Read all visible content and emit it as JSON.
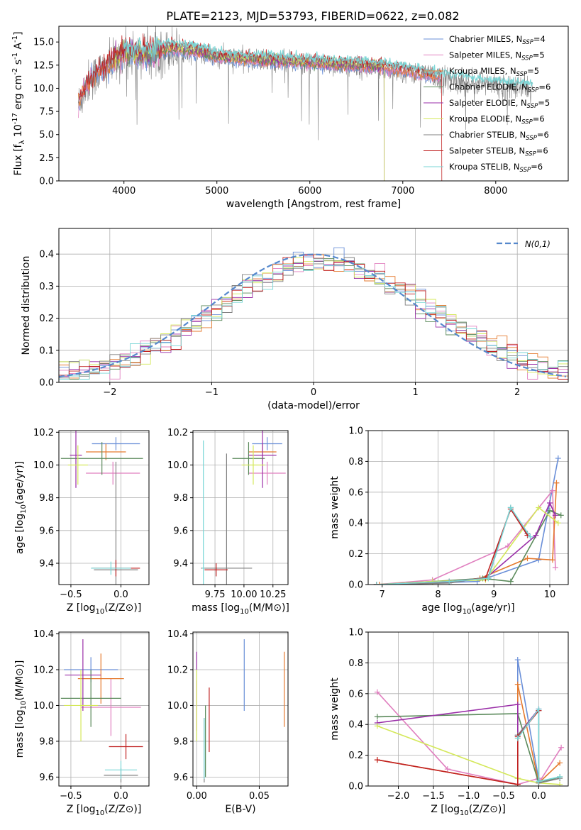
{
  "colors": [
    "#6a8fd8",
    "#e07fbf",
    "#e57a2e",
    "#5b8a5b",
    "#9a2fa8",
    "#d4e85a",
    "#808080",
    "#c02020",
    "#78d6d6"
  ],
  "legend_entries": [
    "Chabrier MILES, N_SSP=4",
    "Salpeter MILES, N_SSP=5",
    "Kroupa MILES, N_SSP=5",
    "Chabrier ELODIE, N_SSP=6",
    "Salpeter ELODIE, N_SSP=5",
    "Kroupa ELODIE, N_SSP=6",
    "Chabrier STELIB, N_SSP=6",
    "Salpeter STELIB, N_SSP=6",
    "Kroupa STELIB, N_SSP=6"
  ],
  "chart_data": [
    {
      "type": "line",
      "id": "spectrum",
      "title": "PLATE=2123, MJD=53793, FIBERID=0622, z=0.082",
      "xlabel": "wavelength [Angstrom, rest frame]",
      "ylabel": "Flux [f_λ 10^-17 erg cm^-2 s^-1 A^-1]",
      "xlim": [
        3300,
        8780
      ],
      "ylim": [
        0,
        16.7
      ],
      "xticks": [
        4000,
        5000,
        6000,
        7000,
        8000
      ],
      "yticks": [
        0.0,
        2.5,
        5.0,
        7.5,
        10.0,
        12.5,
        15.0
      ],
      "ytick_labels": [
        "0.0",
        "2.5",
        "5.0",
        "7.5",
        "10.0",
        "12.5",
        "15.0"
      ],
      "legend": "top-right",
      "observed_continuum": [
        [
          3510,
          8.2
        ],
        [
          3600,
          10.5
        ],
        [
          3700,
          11.5
        ],
        [
          3800,
          12.0
        ],
        [
          3900,
          12.8
        ],
        [
          4000,
          13.8
        ],
        [
          4100,
          13.6
        ],
        [
          4300,
          13.5
        ],
        [
          4500,
          14.2
        ],
        [
          4800,
          13.8
        ],
        [
          5000,
          13.2
        ],
        [
          5500,
          12.9
        ],
        [
          6000,
          12.6
        ],
        [
          6500,
          12.3
        ],
        [
          6800,
          12.1
        ],
        [
          7000,
          11.8
        ],
        [
          7300,
          11.2
        ],
        [
          7600,
          10.8
        ],
        [
          8000,
          10.3
        ],
        [
          8400,
          9.9
        ]
      ],
      "model_ranges": [
        [
          3510,
          7400
        ],
        [
          3510,
          7400
        ],
        [
          3510,
          7400
        ],
        [
          3900,
          6800
        ],
        [
          3900,
          6800
        ],
        [
          3900,
          6800
        ],
        [
          3510,
          7420
        ],
        [
          3510,
          7420
        ],
        [
          4000,
          8400
        ]
      ]
    },
    {
      "type": "bar",
      "id": "residuals",
      "xlabel": "(data-model)/error",
      "ylabel": "Normed distribution",
      "xlim": [
        -2.5,
        2.5
      ],
      "ylim": [
        0,
        0.48
      ],
      "xticks": [
        -2,
        -1,
        0,
        1,
        2
      ],
      "xtick_labels": [
        "−2",
        "−1",
        "0",
        "1",
        "2"
      ],
      "yticks": [
        0.0,
        0.1,
        0.2,
        0.3,
        0.4
      ],
      "ytick_labels": [
        "0.0",
        "0.1",
        "0.2",
        "0.3",
        "0.4"
      ],
      "bin_width": 0.1,
      "gaussian_label": "N(0,1)",
      "legend": "top-right"
    },
    {
      "type": "scatter",
      "id": "age-vs-Z",
      "xlabel": "Z [log10(Z/Z⊙)]",
      "ylabel": "age [log10(age/yr)]",
      "xlim": [
        -0.62,
        0.28
      ],
      "ylim": [
        9.27,
        10.21
      ],
      "xticks": [
        -0.5,
        0.0
      ],
      "xtick_labels": [
        "−0.5",
        "0.0"
      ],
      "yticks": [
        9.4,
        9.6,
        9.8,
        10.0,
        10.2
      ],
      "ytick_labels": [
        "9.4",
        "9.6",
        "9.8",
        "10.0",
        "10.2"
      ],
      "points": [
        {
          "x": -0.05,
          "y": 10.13,
          "xerr": 0.24,
          "yerr": 0.04
        },
        {
          "x": -0.08,
          "y": 9.95,
          "xerr": 0.27,
          "yerr": 0.07
        },
        {
          "x": -0.15,
          "y": 10.08,
          "xerr": 0.2,
          "yerr": 0.05
        },
        {
          "x": -0.19,
          "y": 10.04,
          "xerr": 0.41,
          "yerr": 0.1
        },
        {
          "x": -0.45,
          "y": 10.06,
          "xerr": 0.06,
          "yerr": 0.2
        },
        {
          "x": -0.43,
          "y": 10.0,
          "xerr": 0.1,
          "yerr": 0.12
        },
        {
          "x": -0.05,
          "y": 9.36,
          "xerr": 0.22,
          "yerr": 0.66
        },
        {
          "x": -0.05,
          "y": 9.37,
          "xerr": 0.24,
          "yerr": 0.05
        },
        {
          "x": -0.1,
          "y": 9.37,
          "xerr": 0.2,
          "yerr": 0.04
        }
      ]
    },
    {
      "type": "scatter",
      "id": "age-vs-mass",
      "xlabel": "mass [log10(M/M⊙)]",
      "ylabel": "",
      "xlim": [
        9.56,
        10.38
      ],
      "ylim": [
        9.27,
        10.21
      ],
      "xticks": [
        9.75,
        10.0,
        10.25
      ],
      "xtick_labels": [
        "9.75",
        "10.00",
        "10.25"
      ],
      "yticks": [
        9.4,
        9.6,
        9.8,
        10.0,
        10.2
      ],
      "ytick_labels": [
        "9.4",
        "9.6",
        "9.8",
        "10.0",
        "10.2"
      ],
      "points": [
        {
          "x": 10.2,
          "y": 10.13,
          "xerr": 0.13,
          "yerr": 0.04
        },
        {
          "x": 10.2,
          "y": 9.95,
          "xerr": 0.16,
          "yerr": 0.07
        },
        {
          "x": 10.16,
          "y": 10.08,
          "xerr": 0.12,
          "yerr": 0.05
        },
        {
          "x": 10.04,
          "y": 10.04,
          "xerr": 0.14,
          "yerr": 0.1
        },
        {
          "x": 10.16,
          "y": 10.06,
          "xerr": 0.12,
          "yerr": 0.2
        },
        {
          "x": 10.08,
          "y": 10.0,
          "xerr": 0.1,
          "yerr": 0.12
        },
        {
          "x": 9.85,
          "y": 9.37,
          "xerr": 0.22,
          "yerr": 0.7
        },
        {
          "x": 9.76,
          "y": 9.36,
          "xerr": 0.1,
          "yerr": 0.04
        },
        {
          "x": 9.65,
          "y": 9.37,
          "xerr": 0.01,
          "yerr": 0.78
        }
      ]
    },
    {
      "type": "line",
      "id": "massweight-vs-age",
      "xlabel": "age [log10(age/yr)]",
      "ylabel": "mass weight",
      "xlim": [
        6.75,
        10.33
      ],
      "ylim": [
        0,
        1.0
      ],
      "xticks": [
        7,
        8,
        9,
        10
      ],
      "xtick_labels": [
        "7",
        "8",
        "9",
        "10"
      ],
      "yticks": [
        0.0,
        0.2,
        0.4,
        0.6,
        0.8,
        1.0
      ],
      "ytick_labels": [
        "0.0",
        "0.2",
        "0.4",
        "0.6",
        "0.8",
        "1.0"
      ],
      "series": [
        {
          "x": [
            6.9,
            7.9,
            8.7,
            9.8,
            10.15
          ],
          "y": [
            0.0,
            0.01,
            0.02,
            0.16,
            0.82
          ]
        },
        {
          "x": [
            6.9,
            7.9,
            9.25,
            10.05,
            10.1
          ],
          "y": [
            0.0,
            0.03,
            0.25,
            0.61,
            0.11
          ]
        },
        {
          "x": [
            6.95,
            7.9,
            8.75,
            9.6,
            10.05,
            10.12
          ],
          "y": [
            0.0,
            0.01,
            0.04,
            0.17,
            0.16,
            0.66
          ]
        },
        {
          "x": [
            6.9,
            7.9,
            8.8,
            9.3,
            10.0,
            10.2
          ],
          "y": [
            0.0,
            0.02,
            0.04,
            0.02,
            0.48,
            0.45
          ]
        },
        {
          "x": [
            6.9,
            7.9,
            8.85,
            9.75,
            10.0,
            10.1
          ],
          "y": [
            0.0,
            0.01,
            0.04,
            0.32,
            0.53,
            0.45
          ]
        },
        {
          "x": [
            6.9,
            7.9,
            8.85,
            9.8,
            10.15
          ],
          "y": [
            0.0,
            0.02,
            0.03,
            0.5,
            0.4
          ]
        },
        {
          "x": [
            6.9,
            8.2,
            8.9,
            9.3,
            9.6
          ],
          "y": [
            0.0,
            0.01,
            0.05,
            0.5,
            0.33
          ]
        },
        {
          "x": [
            6.9,
            8.2,
            8.85,
            9.3,
            9.6
          ],
          "y": [
            0.0,
            0.02,
            0.04,
            0.49,
            0.32
          ]
        },
        {
          "x": [
            6.9,
            8.2,
            8.9,
            9.3,
            9.65
          ],
          "y": [
            0.0,
            0.02,
            0.04,
            0.5,
            0.31
          ]
        }
      ]
    },
    {
      "type": "scatter",
      "id": "mass-vs-Z",
      "xlabel": "Z [log10(Z/Z⊙)]",
      "ylabel": "mass [log10(M/M⊙)]",
      "xlim": [
        -0.62,
        0.28
      ],
      "ylim": [
        9.55,
        10.41
      ],
      "xticks": [
        -0.5,
        0.0
      ],
      "xtick_labels": [
        "−0.5",
        "0.0"
      ],
      "yticks": [
        9.6,
        9.8,
        10.0,
        10.2,
        10.4
      ],
      "ytick_labels": [
        "9.6",
        "9.8",
        "10.0",
        "10.2",
        "10.4"
      ],
      "points": [
        {
          "x": -0.3,
          "y": 10.2,
          "xerr": 0.27,
          "yerr": 0.07
        },
        {
          "x": -0.1,
          "y": 9.99,
          "xerr": 0.3,
          "yerr": 0.16
        },
        {
          "x": -0.2,
          "y": 10.15,
          "xerr": 0.23,
          "yerr": 0.14
        },
        {
          "x": -0.3,
          "y": 10.04,
          "xerr": 0.3,
          "yerr": 0.16
        },
        {
          "x": -0.38,
          "y": 10.17,
          "xerr": 0.18,
          "yerr": 0.2
        },
        {
          "x": -0.4,
          "y": 10.0,
          "xerr": 0.17,
          "yerr": 0.2
        },
        {
          "x": 0.0,
          "y": 9.61,
          "xerr": 0.17,
          "yerr": 0.04
        },
        {
          "x": 0.05,
          "y": 9.77,
          "xerr": 0.17,
          "yerr": 0.07
        },
        {
          "x": 0.0,
          "y": 9.64,
          "xerr": 0.16,
          "yerr": 0.05
        }
      ]
    },
    {
      "type": "scatter",
      "id": "mass-vs-EBV",
      "xlabel": "E(B-V)",
      "ylabel": "",
      "xlim": [
        -0.003,
        0.073
      ],
      "ylim": [
        9.55,
        10.41
      ],
      "xticks": [
        0.0,
        0.05
      ],
      "xtick_labels": [
        "0.00",
        "0.05"
      ],
      "yticks": [
        9.6,
        9.8,
        10.0,
        10.2,
        10.4
      ],
      "ytick_labels": [
        "9.6",
        "9.8",
        "10.0",
        "10.2",
        "10.4"
      ],
      "points": [
        {
          "x": 0.038,
          "y": 10.17,
          "yerr": 0.2
        },
        {
          "x": 0.0,
          "y": 10.0,
          "yerr": 0.14
        },
        {
          "x": 0.07,
          "y": 10.09,
          "yerr": 0.21
        },
        {
          "x": 0.007,
          "y": 9.8,
          "yerr": 0.2
        },
        {
          "x": 0.0,
          "y": 10.25,
          "yerr": 0.05
        },
        {
          "x": 0.0,
          "y": 10.0,
          "yerr": 0.2
        },
        {
          "x": 0.006,
          "y": 9.75,
          "yerr": 0.18
        },
        {
          "x": 0.01,
          "y": 9.92,
          "yerr": 0.18
        },
        {
          "x": 0.006,
          "y": 9.76,
          "yerr": 0.17
        }
      ]
    },
    {
      "type": "line",
      "id": "massweight-vs-Z",
      "xlabel": "Z [log10(Z/Z⊙)]",
      "ylabel": "mass weight",
      "xlim": [
        -2.43,
        0.42
      ],
      "ylim": [
        0,
        1.0
      ],
      "xticks": [
        -2.0,
        -1.5,
        -1.0,
        -0.5,
        0.0
      ],
      "xtick_labels": [
        "−2.0",
        "−1.5",
        "−1.0",
        "−0.5",
        "0.0"
      ],
      "yticks": [
        0.0,
        0.2,
        0.4,
        0.6,
        0.8,
        1.0
      ],
      "ytick_labels": [
        "0.0",
        "0.2",
        "0.4",
        "0.6",
        "0.8",
        "1.0"
      ],
      "series": [
        {
          "x": [
            -0.3,
            -0.3,
            0.0,
            0.0
          ],
          "y": [
            0.05,
            0.82,
            0.04,
            0.02
          ]
        },
        {
          "x": [
            -2.3,
            -1.3,
            -0.3,
            0.0,
            0.0,
            0.32
          ],
          "y": [
            0.61,
            0.11,
            0.01,
            0.05,
            0.02,
            0.25
          ]
        },
        {
          "x": [
            -2.3,
            -0.3,
            -0.3,
            0.0,
            0.3
          ],
          "y": [
            0.17,
            0.01,
            0.66,
            0.02,
            0.15
          ]
        },
        {
          "x": [
            -2.3,
            -0.3,
            0.0,
            0.3
          ],
          "y": [
            0.45,
            0.47,
            0.02,
            0.06
          ]
        },
        {
          "x": [
            -2.3,
            -0.3,
            -0.3,
            0.0
          ],
          "y": [
            0.41,
            0.53,
            0.33,
            0.5
          ]
        },
        {
          "x": [
            -2.3,
            -0.3,
            0.0,
            0.3
          ],
          "y": [
            0.39,
            0.05,
            0.02,
            0.01
          ]
        },
        {
          "x": [
            -0.3,
            0.0,
            0.0,
            0.3
          ],
          "y": [
            0.33,
            0.49,
            0.02,
            0.05
          ]
        },
        {
          "x": [
            -2.3,
            -0.3,
            -0.3,
            0.0
          ],
          "y": [
            0.17,
            0.01,
            0.32,
            0.49
          ]
        },
        {
          "x": [
            -0.3,
            0.0,
            0.0,
            0.3
          ],
          "y": [
            0.31,
            0.5,
            0.03,
            0.06
          ]
        }
      ]
    }
  ]
}
